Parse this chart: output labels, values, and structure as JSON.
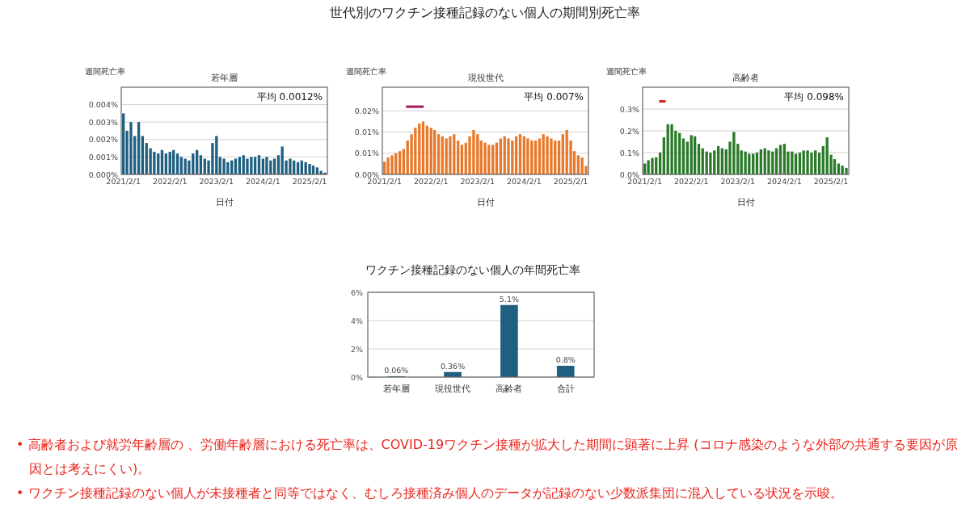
{
  "chart_data": [
    {
      "type": "bar",
      "title": "若年層",
      "xlabel": "日付",
      "ylabel": "週間死亡率",
      "annotations": [
        "平均 0.0012%"
      ],
      "grid": "y",
      "legend": false,
      "x": [
        "2021-02",
        "2021-03",
        "2021-04",
        "2021-05",
        "2021-06",
        "2021-07",
        "2021-08",
        "2021-09",
        "2021-10",
        "2021-11",
        "2021-12",
        "2022-01",
        "2022-02",
        "2022-03",
        "2022-04",
        "2022-05",
        "2022-06",
        "2022-07",
        "2022-08",
        "2022-09",
        "2022-10",
        "2022-11",
        "2022-12",
        "2023-01",
        "2023-02",
        "2023-03",
        "2023-04",
        "2023-05",
        "2023-06",
        "2023-07",
        "2023-08",
        "2023-09",
        "2023-10",
        "2023-11",
        "2023-12",
        "2024-01",
        "2024-02",
        "2024-03",
        "2024-04",
        "2024-05",
        "2024-06",
        "2024-07",
        "2024-08",
        "2024-09",
        "2024-10",
        "2024-11",
        "2024-12",
        "2025-01",
        "2025-02",
        "2025-03",
        "2025-04",
        "2025-05",
        "2025-06"
      ],
      "values": [
        0.0035,
        0.0025,
        0.003,
        0.0022,
        0.003,
        0.0022,
        0.0018,
        0.0015,
        0.0013,
        0.0012,
        0.0014,
        0.0012,
        0.0013,
        0.0014,
        0.0012,
        0.001,
        0.0009,
        0.0008,
        0.0012,
        0.0014,
        0.0011,
        0.0009,
        0.0008,
        0.0018,
        0.0022,
        0.001,
        0.0009,
        0.0007,
        0.0008,
        0.0009,
        0.001,
        0.0011,
        0.0009,
        0.001,
        0.001,
        0.0011,
        0.0009,
        0.001,
        0.0008,
        0.0009,
        0.0011,
        0.0016,
        0.0008,
        0.0009,
        0.0008,
        0.0007,
        0.0008,
        0.0007,
        0.0006,
        0.0005,
        0.0004,
        0.0002,
        0.0001
      ],
      "color": "#1f5f80",
      "xlim": [
        "2021-01-15",
        "2025-06-20"
      ],
      "xticks": [
        {
          "value": "2021-02-01",
          "label": "2021/2/1"
        },
        {
          "value": "2022-02-01",
          "label": "2022/2/1"
        },
        {
          "value": "2023-02-01",
          "label": "2023/2/1"
        },
        {
          "value": "2024-02-01",
          "label": "2024/2/1"
        },
        {
          "value": "2025-02-01",
          "label": "2025/2/1"
        }
      ],
      "ylim": [
        0,
        0.005
      ],
      "yticks": [
        {
          "value": 0,
          "label": "0.000%"
        },
        {
          "value": 0.001,
          "label": "0.001%"
        },
        {
          "value": 0.002,
          "label": "0.002%"
        },
        {
          "value": 0.003,
          "label": "0.003%"
        },
        {
          "value": 0.004,
          "label": "0.004%"
        }
      ]
    },
    {
      "type": "bar",
      "subtitle": "世代別のワクチン接種記録のない個人の期間別死亡率",
      "title": "現役世代",
      "xlabel": "日付",
      "ylabel": "週間死亡率",
      "annotations": [
        "平均 0.007%"
      ],
      "grid": "y",
      "legend": false,
      "x": [
        "2021-02",
        "2021-03",
        "2021-04",
        "2021-05",
        "2021-06",
        "2021-07",
        "2021-08",
        "2021-09",
        "2021-10",
        "2021-11",
        "2021-12",
        "2022-01",
        "2022-02",
        "2022-03",
        "2022-04",
        "2022-05",
        "2022-06",
        "2022-07",
        "2022-08",
        "2022-09",
        "2022-10",
        "2022-11",
        "2022-12",
        "2023-01",
        "2023-02",
        "2023-03",
        "2023-04",
        "2023-05",
        "2023-06",
        "2023-07",
        "2023-08",
        "2023-09",
        "2023-10",
        "2023-11",
        "2023-12",
        "2024-01",
        "2024-02",
        "2024-03",
        "2024-04",
        "2024-05",
        "2024-06",
        "2024-07",
        "2024-08",
        "2024-09",
        "2024-10",
        "2024-11",
        "2024-12",
        "2025-01",
        "2025-02",
        "2025-03",
        "2025-04",
        "2025-05",
        "2025-06"
      ],
      "values": [
        0.003,
        0.004,
        0.0045,
        0.005,
        0.0055,
        0.006,
        0.008,
        0.0095,
        0.011,
        0.012,
        0.0125,
        0.0115,
        0.011,
        0.0105,
        0.0095,
        0.009,
        0.0085,
        0.009,
        0.0095,
        0.008,
        0.007,
        0.0075,
        0.009,
        0.0105,
        0.0095,
        0.008,
        0.0075,
        0.007,
        0.007,
        0.0075,
        0.0085,
        0.009,
        0.0085,
        0.008,
        0.009,
        0.0095,
        0.009,
        0.0085,
        0.008,
        0.008,
        0.0085,
        0.0095,
        0.009,
        0.0085,
        0.008,
        0.008,
        0.0095,
        0.0105,
        0.008,
        0.0055,
        0.0045,
        0.004,
        0.002
      ],
      "color": "#e8782a",
      "xlim": [
        "2021-01-15",
        "2025-06-20"
      ],
      "xticks": [
        {
          "value": "2021-02-01",
          "label": "2021/2/1"
        },
        {
          "value": "2022-02-01",
          "label": "2022/2/1"
        },
        {
          "value": "2023-02-01",
          "label": "2023/2/1"
        },
        {
          "value": "2024-02-01",
          "label": "2024/2/1"
        },
        {
          "value": "2025-02-01",
          "label": "2025/2/1"
        }
      ],
      "ylim": [
        0,
        0.0206
      ],
      "yticks": [
        {
          "value": 0,
          "label": "0.00%"
        },
        {
          "value": 0.005,
          "label": "0.01%"
        },
        {
          "value": 0.01,
          "label": "0.01%"
        },
        {
          "value": 0.015,
          "label": "0.02%"
        }
      ],
      "series": [
        {
          "type": "line",
          "x": [
            "2021-07-20",
            "2021-12-05"
          ],
          "values": [
            0.016,
            0.016
          ],
          "color": "#a0185a"
        }
      ]
    },
    {
      "type": "bar",
      "title": "高齢者",
      "xlabel": "日付",
      "ylabel": "週間死亡率",
      "annotations": [
        "平均 0.098%"
      ],
      "grid": "y",
      "legend": false,
      "x": [
        "2021-02",
        "2021-03",
        "2021-04",
        "2021-05",
        "2021-06",
        "2021-07",
        "2021-08",
        "2021-09",
        "2021-10",
        "2021-11",
        "2021-12",
        "2022-01",
        "2022-02",
        "2022-03",
        "2022-04",
        "2022-05",
        "2022-06",
        "2022-07",
        "2022-08",
        "2022-09",
        "2022-10",
        "2022-11",
        "2022-12",
        "2023-01",
        "2023-02",
        "2023-03",
        "2023-04",
        "2023-05",
        "2023-06",
        "2023-07",
        "2023-08",
        "2023-09",
        "2023-10",
        "2023-11",
        "2023-12",
        "2024-01",
        "2024-02",
        "2024-03",
        "2024-04",
        "2024-05",
        "2024-06",
        "2024-07",
        "2024-08",
        "2024-09",
        "2024-10",
        "2024-11",
        "2024-12",
        "2025-01",
        "2025-02",
        "2025-03",
        "2025-04",
        "2025-05",
        "2025-06"
      ],
      "values": [
        0.05,
        0.065,
        0.075,
        0.078,
        0.1,
        0.17,
        0.23,
        0.23,
        0.2,
        0.19,
        0.165,
        0.15,
        0.18,
        0.175,
        0.14,
        0.12,
        0.105,
        0.1,
        0.11,
        0.13,
        0.12,
        0.115,
        0.15,
        0.195,
        0.14,
        0.11,
        0.105,
        0.095,
        0.095,
        0.1,
        0.115,
        0.12,
        0.11,
        0.105,
        0.12,
        0.135,
        0.14,
        0.105,
        0.105,
        0.095,
        0.1,
        0.11,
        0.11,
        0.1,
        0.11,
        0.1,
        0.13,
        0.17,
        0.09,
        0.07,
        0.05,
        0.04,
        0.03
      ],
      "color": "#2a7a2a",
      "xlim": [
        "2021-01-15",
        "2025-06-20"
      ],
      "xticks": [
        {
          "value": "2021-02-01",
          "label": "2021/2/1"
        },
        {
          "value": "2022-02-01",
          "label": "2022/2/1"
        },
        {
          "value": "2023-02-01",
          "label": "2023/2/1"
        },
        {
          "value": "2024-02-01",
          "label": "2024/2/1"
        },
        {
          "value": "2025-02-01",
          "label": "2025/2/1"
        }
      ],
      "ylim": [
        0,
        0.4
      ],
      "yticks": [
        {
          "value": 0,
          "label": "0.0%"
        },
        {
          "value": 0.1,
          "label": "0.1%"
        },
        {
          "value": 0.2,
          "label": "0.2%"
        },
        {
          "value": 0.3,
          "label": "0.3%"
        }
      ],
      "series": [
        {
          "type": "line",
          "x": [
            "2021-05-24",
            "2021-07-15"
          ],
          "values": [
            0.335,
            0.335
          ],
          "color": "#d4221a"
        }
      ]
    },
    {
      "type": "bar",
      "title": "ワクチン接種記録のない個人の年間死亡率",
      "grid": "y",
      "legend": false,
      "categories": [
        "若年層",
        "現役世代",
        "高齢者",
        "合計"
      ],
      "values": [
        0.06,
        0.36,
        5.1,
        0.8
      ],
      "color": "#1f5f80",
      "value_labels": [
        "0.06%",
        "0.36%",
        "5.1%",
        "0.8%"
      ],
      "ylim": [
        0,
        6
      ],
      "yticks": [
        {
          "value": 0,
          "label": "0%"
        },
        {
          "value": 2,
          "label": "2%"
        },
        {
          "value": 4,
          "label": "4%"
        },
        {
          "value": 6,
          "label": "6%"
        }
      ],
      "annotations": [
        "• 高齢者および就労年齢層の 、労働年齢層における死亡率は、COVID-19ワクチン接種が拡大した期間に顕著に上昇 (コロナ感染のような外部の共通する要因が原因とは考えにくい)。",
        "• ワクチン接種記録のない個人が未接種者と同等ではなく、むしろ接種済み個人のデータが記録のない少数派集団に混入している状況を示唆。"
      ]
    }
  ]
}
